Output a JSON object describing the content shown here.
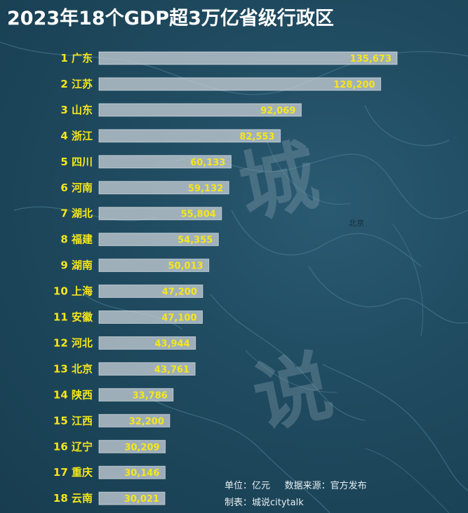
{
  "title": "2023年18个GDP超3万亿省级行政区",
  "footer": {
    "line1": "单位：亿元     数据来源：官方发布",
    "line2": "制表：城说citytalk"
  },
  "watermark": {
    "char1": "城",
    "char2": "说"
  },
  "map_city_label": "北京",
  "colors": {
    "background": "#1f4a5f",
    "bar": "#c3ccd3",
    "label": "#f5e61a",
    "title": "#ffffff"
  },
  "chart_data": {
    "type": "bar",
    "orientation": "horizontal",
    "title": "2023年18个GDP超3万亿省级行政区",
    "unit": "亿元",
    "ranks": [
      "1",
      "2",
      "3",
      "4",
      "5",
      "6",
      "7",
      "8",
      "9",
      "10",
      "11",
      "12",
      "13",
      "14",
      "15",
      "16",
      "17",
      "18"
    ],
    "categories": [
      "广东",
      "江苏",
      "山东",
      "浙江",
      "四川",
      "河南",
      "湖北",
      "福建",
      "湖南",
      "上海",
      "安徽",
      "河北",
      "北京",
      "陕西",
      "江西",
      "辽宁",
      "重庆",
      "云南"
    ],
    "values": [
      135673,
      128200,
      92069,
      82553,
      60133,
      59132,
      55804,
      54355,
      50013,
      47200,
      47100,
      43944,
      43761,
      33786,
      32200,
      30209,
      30146,
      30021
    ],
    "value_labels": [
      "135,673",
      "128,200",
      "92,069",
      "82,553",
      "60,133",
      "59,132",
      "55,804",
      "54,355",
      "50,013",
      "47,200",
      "47,100",
      "43,944",
      "43,761",
      "33,786",
      "32,200",
      "30,209",
      "30,146",
      "30,021"
    ],
    "xlim": [
      0,
      135673
    ]
  }
}
